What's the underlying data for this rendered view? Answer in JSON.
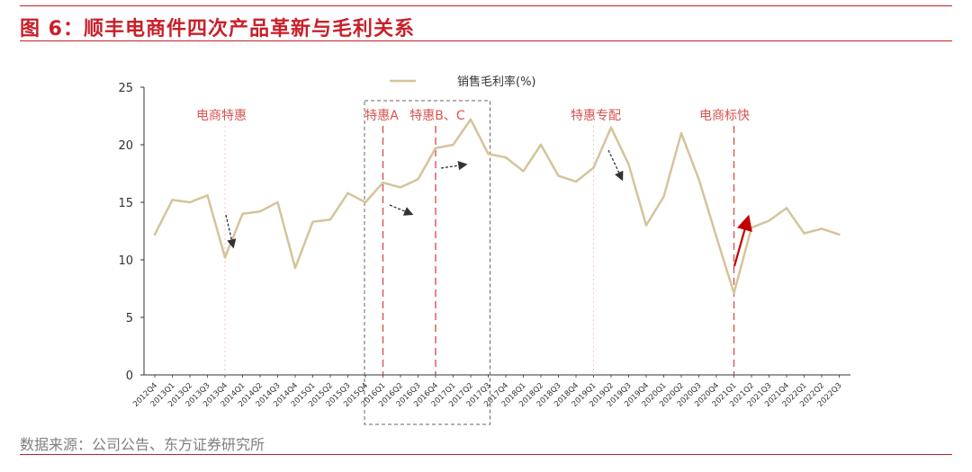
{
  "figure": {
    "title": "图 6：顺丰电商件四次产品革新与毛利关系",
    "source": "数据来源：公司公告、东方证券研究所"
  },
  "colors": {
    "title": "#c8202a",
    "line": "#d4c49a",
    "annotation": "#d9534f",
    "arrow_dark": "#333333",
    "arrow_red": "#c00000"
  },
  "chart_data": {
    "type": "line",
    "title": "图 6：顺丰电商件四次产品革新与毛利关系",
    "xlabel": "",
    "ylabel": "",
    "ylim": [
      0,
      25
    ],
    "yticks": [
      0,
      5,
      10,
      15,
      20,
      25
    ],
    "legend": "top-center",
    "grid": false,
    "categories": [
      "2012Q4",
      "2013Q1",
      "2013Q2",
      "2013Q3",
      "2013Q4",
      "2014Q1",
      "2014Q2",
      "2014Q3",
      "2014Q4",
      "2015Q1",
      "2015Q2",
      "2015Q3",
      "2015Q4",
      "2016Q1",
      "2016Q2",
      "2016Q3",
      "2016Q4",
      "2017Q1",
      "2017Q2",
      "2017Q3",
      "2017Q4",
      "2018Q1",
      "2018Q2",
      "2018Q3",
      "2018Q4",
      "2019Q1",
      "2019Q2",
      "2019Q3",
      "2019Q4",
      "2020Q1",
      "2020Q2",
      "2020Q3",
      "2020Q4",
      "2021Q1",
      "2021Q2",
      "2021Q3",
      "2021Q4",
      "2022Q1",
      "2022Q2",
      "2022Q3"
    ],
    "series": [
      {
        "name": "销售毛利率(%)",
        "values": [
          12.2,
          15.2,
          15.0,
          15.6,
          10.2,
          14.0,
          14.2,
          15.0,
          9.3,
          13.3,
          13.5,
          15.8,
          15.0,
          16.7,
          16.3,
          17.0,
          19.7,
          20.0,
          22.2,
          19.2,
          18.9,
          17.7,
          20.0,
          17.3,
          16.8,
          18.0,
          21.5,
          18.3,
          13.0,
          15.5,
          21.0,
          17.0,
          12.0,
          7.1,
          12.8,
          13.4,
          14.5,
          12.3,
          12.7,
          12.2
        ]
      }
    ],
    "annotations": [
      {
        "id": "ecommerce-special",
        "label": "电商特惠",
        "index": 4,
        "line_style": "dotted-light"
      },
      {
        "id": "special-a",
        "label": "特惠A",
        "index": 13,
        "line_style": "dashed"
      },
      {
        "id": "special-bc",
        "label": "特惠B、C",
        "index": 16,
        "line_style": "dashed"
      },
      {
        "id": "special-exclusive",
        "label": "特惠专配",
        "index": 25,
        "line_style": "dotted-light"
      },
      {
        "id": "ecommerce-express",
        "label": "电商标快",
        "index": 33,
        "line_style": "dashed"
      }
    ],
    "highlight_box": {
      "from_index": 12,
      "to_index": 19
    }
  }
}
